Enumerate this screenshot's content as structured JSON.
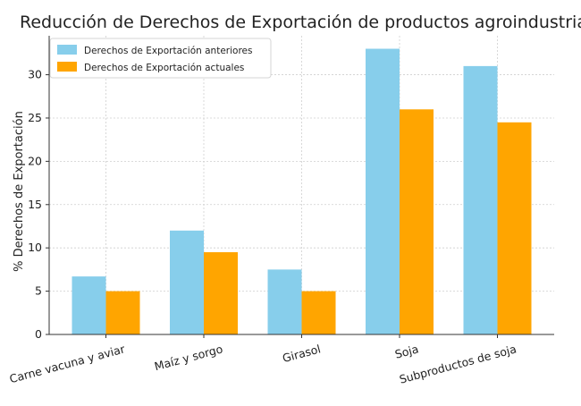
{
  "chart_data": {
    "type": "bar",
    "title": "Reducción de Derechos de Exportación de productos agroindustriales",
    "xlabel": "",
    "ylabel": "% Derechos de Exportación",
    "categories": [
      "Carne vacuna y aviar",
      "Maíz y sorgo",
      "Girasol",
      "Soja",
      "Subproductos de soja"
    ],
    "series": [
      {
        "name": "Derechos de Exportación anteriores",
        "color": "#87ceeb",
        "values": [
          6.7,
          12,
          7.5,
          33,
          31
        ]
      },
      {
        "name": "Derechos de Exportación actuales",
        "color": "#ffa500",
        "values": [
          5,
          9.5,
          5,
          26,
          24.5
        ]
      }
    ],
    "ylim": [
      0,
      34.5
    ],
    "yticks": [
      0,
      5,
      10,
      15,
      20,
      25,
      30
    ],
    "grid": true,
    "legend_position": "top-left"
  }
}
